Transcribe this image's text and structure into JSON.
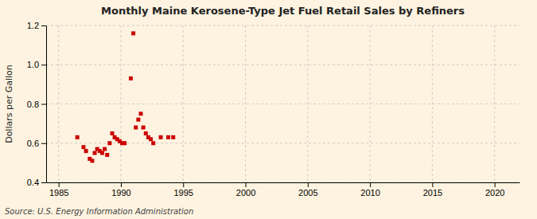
{
  "chart_data": {
    "type": "scatter",
    "title": "Monthly Maine Kerosene-Type Jet Fuel Retail Sales by Refiners",
    "ylabel": "Dollars per Gallon",
    "annotations": [
      "Source: U.S. Energy Information Administration"
    ],
    "xlim": [
      1984,
      2022
    ],
    "ylim": [
      0.4,
      1.2
    ],
    "xticks": [
      1985,
      1990,
      1995,
      2000,
      2005,
      2010,
      2015,
      2020
    ],
    "yticks": [
      0.4,
      0.6,
      0.8,
      {
        "value": 1.0,
        "label": "1.0"
      },
      1.2
    ],
    "grid": true,
    "color": "#cc0000",
    "marker": "square",
    "x": [
      1986.5,
      1987.0,
      1987.2,
      1987.5,
      1987.7,
      1987.9,
      1988.1,
      1988.3,
      1988.5,
      1988.7,
      1988.9,
      1989.1,
      1989.3,
      1989.5,
      1989.7,
      1989.9,
      1990.1,
      1990.3,
      1990.8,
      1991.0,
      1991.2,
      1991.4,
      1991.6,
      1991.8,
      1992.0,
      1992.2,
      1992.4,
      1992.6,
      1993.2,
      1993.8,
      1994.2
    ],
    "y": [
      0.63,
      0.58,
      0.56,
      0.52,
      0.51,
      0.55,
      0.57,
      0.56,
      0.55,
      0.57,
      0.54,
      0.6,
      0.65,
      0.63,
      0.62,
      0.61,
      0.6,
      0.6,
      0.93,
      1.16,
      0.68,
      0.72,
      0.75,
      0.68,
      0.65,
      0.63,
      0.62,
      0.6,
      0.63,
      0.63,
      0.63
    ]
  }
}
